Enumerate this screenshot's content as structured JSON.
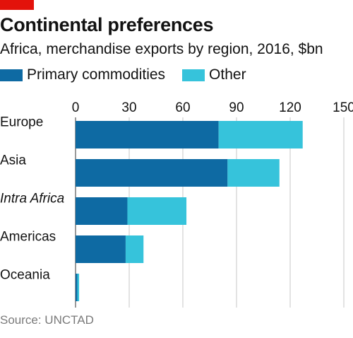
{
  "header": {
    "title": "Continental preferences",
    "subtitle": "Africa, merchandise exports by region, 2016, $bn"
  },
  "source": "Source: UNCTAD",
  "colors": {
    "brand_red": "#e3120b",
    "primary": "#0e6aa3",
    "other": "#36c3db",
    "grid": "#c7c7c7",
    "axis": "#333333"
  },
  "chart_data": {
    "type": "bar",
    "orientation": "horizontal",
    "stacked": true,
    "title": "Continental preferences",
    "subtitle": "Africa, merchandise exports by region, 2016, $bn",
    "categories": [
      "Europe",
      "Asia",
      "Intra Africa",
      "Americas",
      "Oceania"
    ],
    "italic_categories": [
      "Intra Africa"
    ],
    "series": [
      {
        "name": "Primary commodities",
        "values": [
          80,
          85,
          29,
          28,
          1
        ]
      },
      {
        "name": "Other",
        "values": [
          47,
          29,
          33,
          10,
          1
        ]
      }
    ],
    "xlim": [
      0,
      150
    ],
    "xticks": [
      0,
      30,
      60,
      90,
      120,
      150
    ],
    "x_axis_position": "top",
    "grid": true,
    "legend_position": "top-left"
  }
}
